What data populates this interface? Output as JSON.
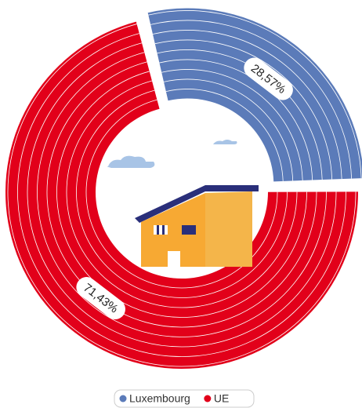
{
  "chart_data": {
    "type": "pie",
    "categories": [
      "Luxembourg",
      "UE"
    ],
    "values": [
      28.57,
      71.43
    ],
    "value_labels": [
      "28,57%",
      "71,43%"
    ],
    "colors": [
      "#5b7bb9",
      "#e2001a"
    ]
  }
}
